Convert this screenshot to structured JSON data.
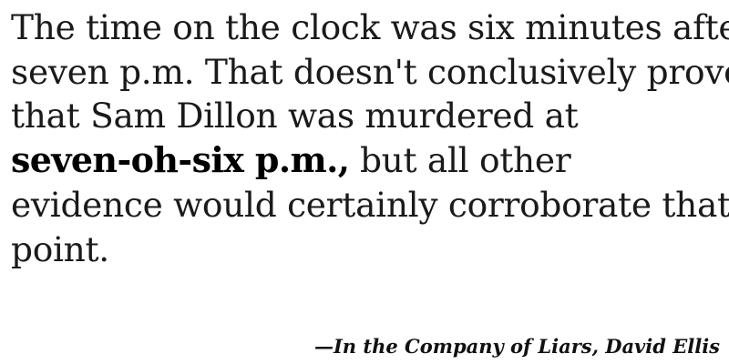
{
  "quote": {
    "lines": [
      "The time on the clock was six minutes after",
      "seven p.m. That doesn't conclusively prove",
      "that Sam Dillon was murdered at"
    ],
    "emphasis_text": "seven-oh-six p.m.,",
    "after_emphasis_text": " but all other",
    "tail_lines": [
      "evidence would certainly corroborate that",
      "point."
    ]
  },
  "attribution": {
    "text": "—In the Company of Liars, David Ellis"
  }
}
